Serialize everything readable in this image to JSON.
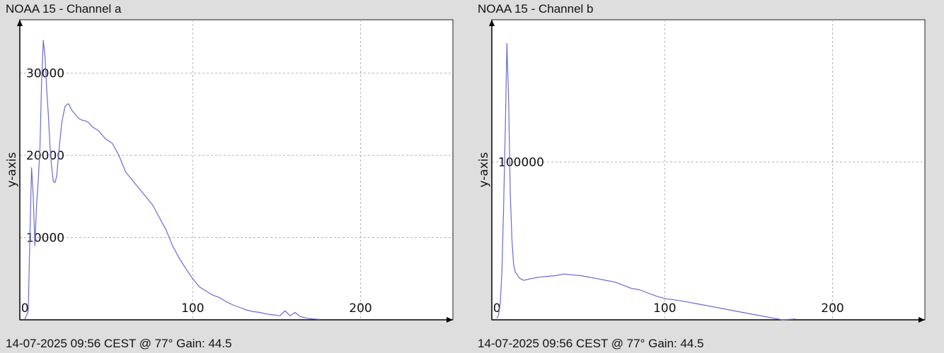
{
  "panels": [
    {
      "title": "NOAA 15 - Channel a",
      "footer": "14-07-2025 09:56 CEST @ 77° Gain: 44.5"
    },
    {
      "title": "NOAA 15 - Channel b",
      "footer": "14-07-2025 09:56 CEST @ 77° Gain: 44.5"
    }
  ],
  "chart_data": [
    {
      "type": "line",
      "title": "NOAA 15 - Channel a",
      "xlabel": "",
      "ylabel": "y-axis",
      "xlim": [
        -3,
        255
      ],
      "ylim": [
        0,
        36500
      ],
      "x_ticks": [
        0,
        100,
        200
      ],
      "y_ticks": [
        10000,
        20000,
        30000
      ],
      "grid": true,
      "color": "#6a6ad4",
      "x": [
        0,
        2,
        3,
        4,
        5,
        6,
        7,
        8,
        9,
        10,
        11,
        12,
        13,
        14,
        15,
        16,
        17,
        18,
        19,
        20,
        22,
        24,
        26,
        28,
        30,
        32,
        34,
        36,
        38,
        40,
        44,
        48,
        52,
        56,
        60,
        64,
        68,
        72,
        76,
        80,
        84,
        88,
        92,
        96,
        100,
        104,
        108,
        112,
        116,
        120,
        124,
        128,
        132,
        136,
        140,
        144,
        148,
        152,
        155,
        158,
        161,
        164,
        168,
        172,
        176
      ],
      "y": [
        100,
        1000,
        10000,
        18500,
        15000,
        9000,
        14000,
        17000,
        21000,
        29000,
        34000,
        32000,
        28000,
        25000,
        21000,
        18500,
        16800,
        16700,
        17500,
        20000,
        24000,
        26000,
        26300,
        25500,
        25000,
        24500,
        24300,
        24200,
        24000,
        23500,
        23000,
        22000,
        21500,
        20000,
        18000,
        17000,
        16000,
        15000,
        14000,
        12500,
        11000,
        9000,
        7500,
        6200,
        5000,
        4000,
        3500,
        3000,
        2700,
        2200,
        1800,
        1500,
        1200,
        1000,
        900,
        700,
        600,
        500,
        1100,
        500,
        900,
        400,
        200,
        100,
        50
      ]
    },
    {
      "type": "line",
      "title": "NOAA 15 - Channel b",
      "xlabel": "",
      "ylabel": "y-axis",
      "xlim": [
        -3,
        255
      ],
      "ylim": [
        0,
        190000
      ],
      "x_ticks": [
        0,
        100,
        200
      ],
      "y_ticks": [
        100000
      ],
      "grid": true,
      "color": "#6a6ad4",
      "x": [
        0,
        1,
        2,
        3,
        4,
        5,
        6,
        7,
        8,
        9,
        10,
        11,
        12,
        13,
        14,
        16,
        18,
        20,
        25,
        30,
        35,
        40,
        45,
        50,
        55,
        60,
        65,
        70,
        75,
        80,
        85,
        90,
        95,
        100,
        110,
        120,
        130,
        140,
        150,
        160,
        166,
        170,
        178
      ],
      "y": [
        1000,
        3000,
        10000,
        30000,
        70000,
        120000,
        175000,
        140000,
        80000,
        50000,
        35000,
        30000,
        29000,
        27000,
        26000,
        25000,
        25500,
        26000,
        27000,
        27500,
        28000,
        29000,
        28500,
        28000,
        27000,
        26000,
        25000,
        24000,
        22000,
        20000,
        19000,
        17000,
        15000,
        13500,
        12000,
        10000,
        8000,
        6000,
        4000,
        2000,
        800,
        0,
        500
      ]
    }
  ]
}
